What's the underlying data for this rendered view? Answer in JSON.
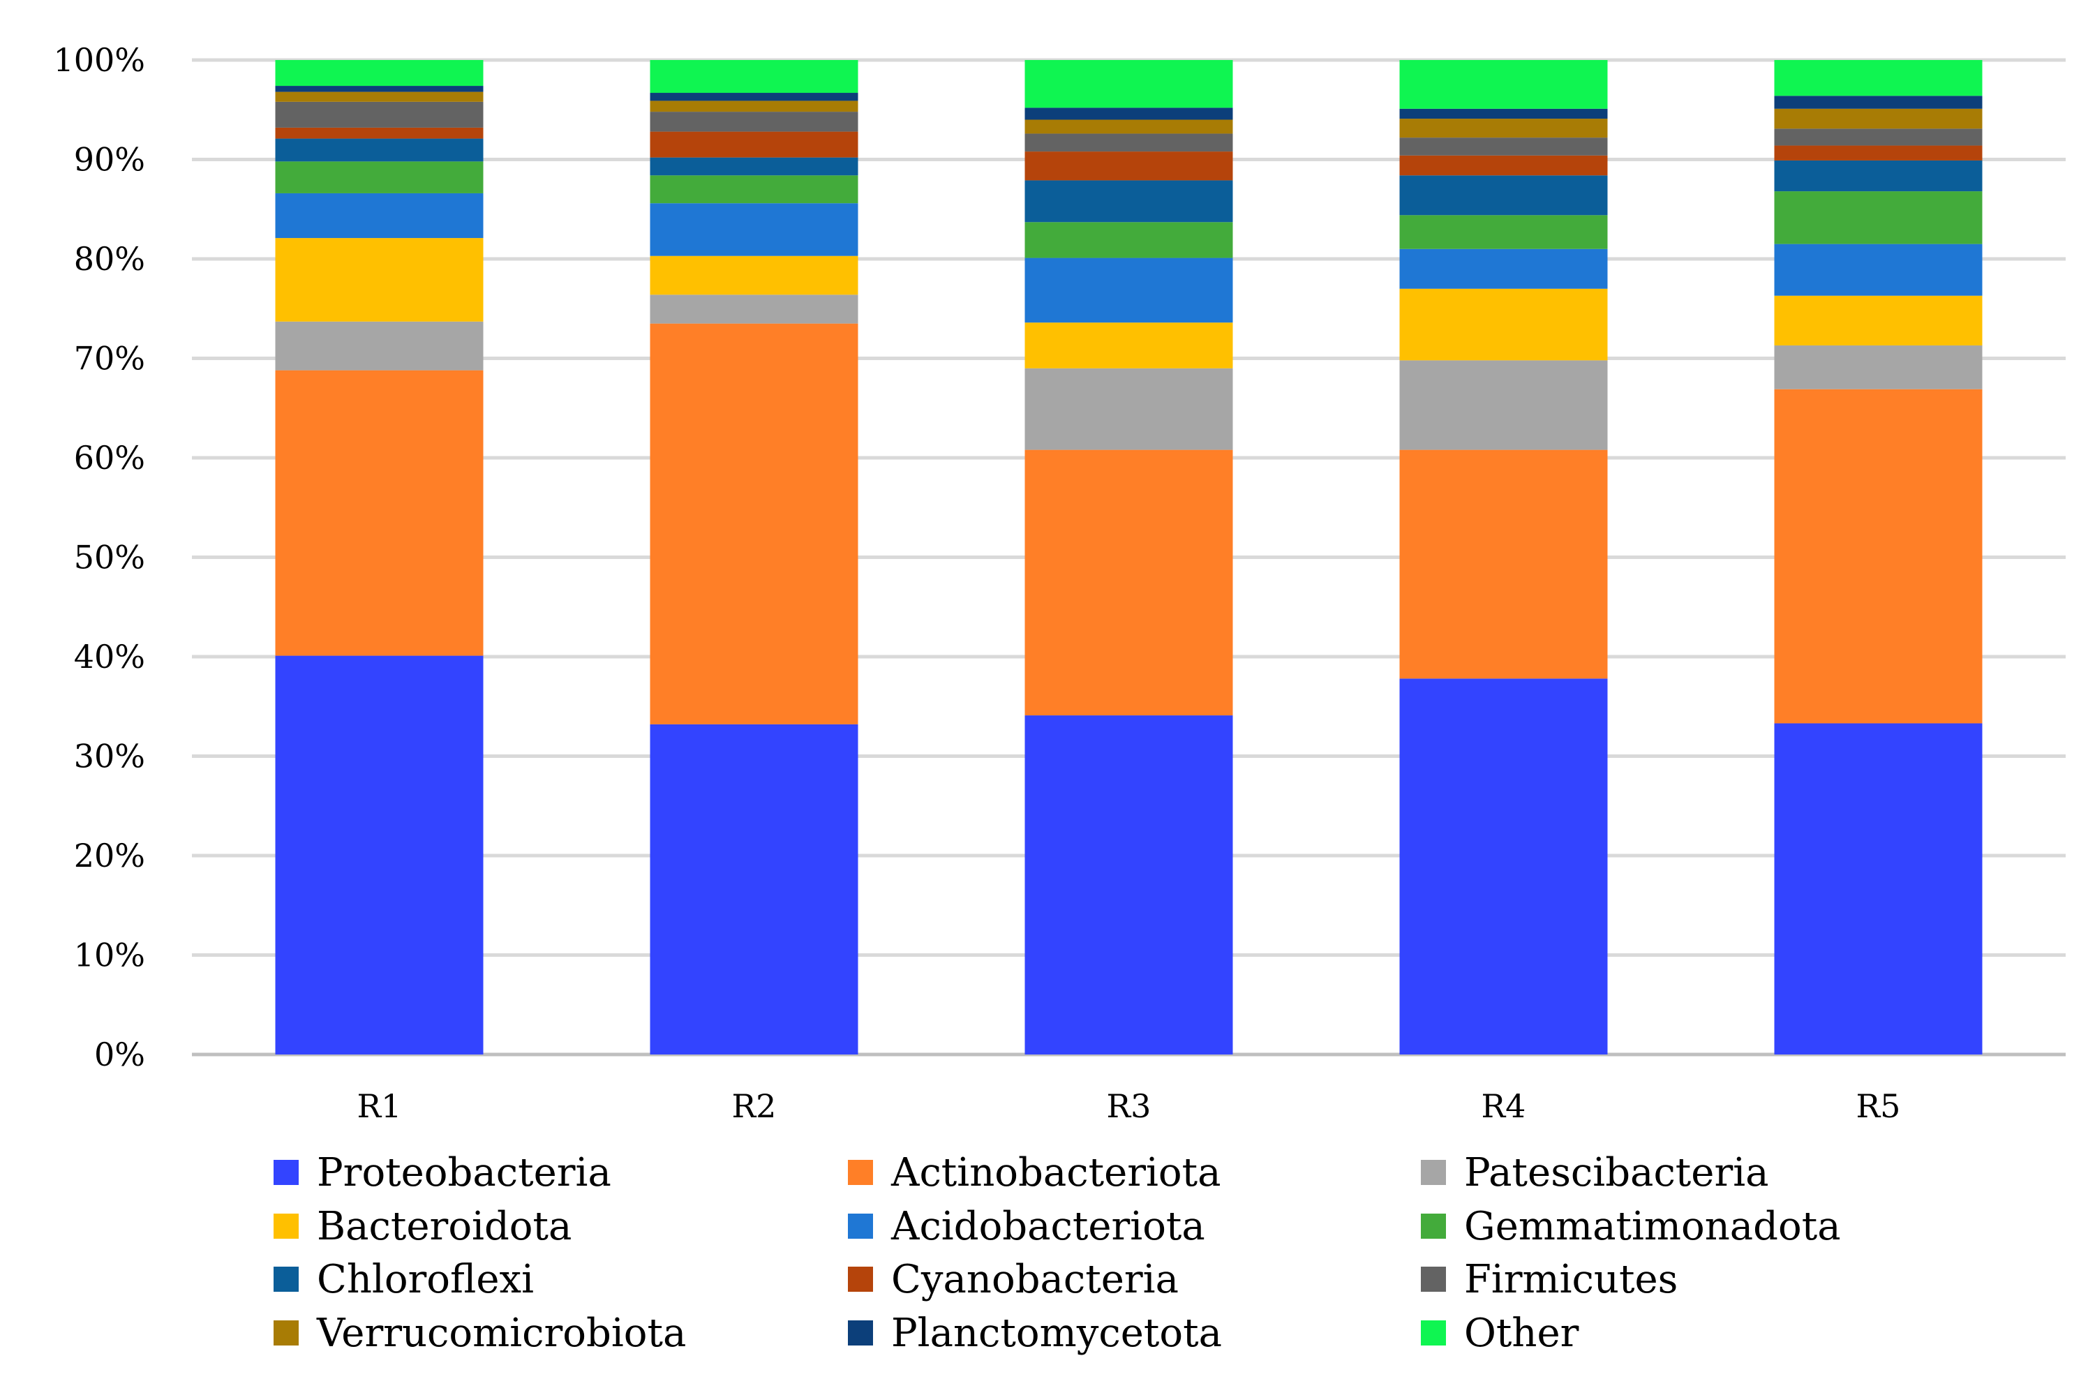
{
  "chart_data": {
    "type": "bar",
    "stacked": true,
    "title": "",
    "xlabel": "",
    "ylabel": "",
    "ylim": [
      0,
      100
    ],
    "yticks": [
      "0%",
      "10%",
      "20%",
      "30%",
      "40%",
      "50%",
      "60%",
      "70%",
      "80%",
      "90%",
      "100%"
    ],
    "grid": true,
    "legend_position": "bottom",
    "categories": [
      "R1",
      "R2",
      "R3",
      "R4",
      "R5"
    ],
    "series": [
      {
        "name": "Proteobacteria",
        "color": "#3344ff",
        "values": [
          40.1,
          33.2,
          34.1,
          37.8,
          33.3
        ]
      },
      {
        "name": "Actinobacteriota",
        "color": "#ff7f27",
        "values": [
          28.7,
          40.3,
          26.7,
          23.0,
          33.6
        ]
      },
      {
        "name": "Patescibacteria",
        "color": "#a6a6a6",
        "values": [
          4.9,
          2.9,
          8.2,
          9.0,
          4.4
        ]
      },
      {
        "name": "Bacteroidota",
        "color": "#ffc000",
        "values": [
          8.4,
          3.9,
          4.6,
          7.2,
          5.0
        ]
      },
      {
        "name": "Acidobacteriota",
        "color": "#1f77d4",
        "values": [
          4.5,
          5.3,
          6.5,
          4.0,
          5.2
        ]
      },
      {
        "name": "Gemmatimonadota",
        "color": "#43ab3b",
        "values": [
          3.2,
          2.8,
          3.6,
          3.4,
          5.3
        ]
      },
      {
        "name": "Chloroflexi",
        "color": "#0b5e99",
        "values": [
          2.3,
          1.8,
          4.2,
          4.0,
          3.1
        ]
      },
      {
        "name": "Cyanobacteria",
        "color": "#b5440b",
        "values": [
          1.1,
          2.6,
          2.9,
          2.0,
          1.5
        ]
      },
      {
        "name": "Firmicutes",
        "color": "#636363",
        "values": [
          2.6,
          2.0,
          1.8,
          1.8,
          1.7
        ]
      },
      {
        "name": "Verrucomicrobiota",
        "color": "#a87c05",
        "values": [
          1.0,
          1.1,
          1.4,
          1.9,
          2.0
        ]
      },
      {
        "name": "Planctomycetota",
        "color": "#0c3f7a",
        "values": [
          0.6,
          0.8,
          1.2,
          1.0,
          1.3
        ]
      },
      {
        "name": "Other",
        "color": "#0ff551",
        "values": [
          2.6,
          3.3,
          4.8,
          4.9,
          3.6
        ]
      }
    ]
  }
}
